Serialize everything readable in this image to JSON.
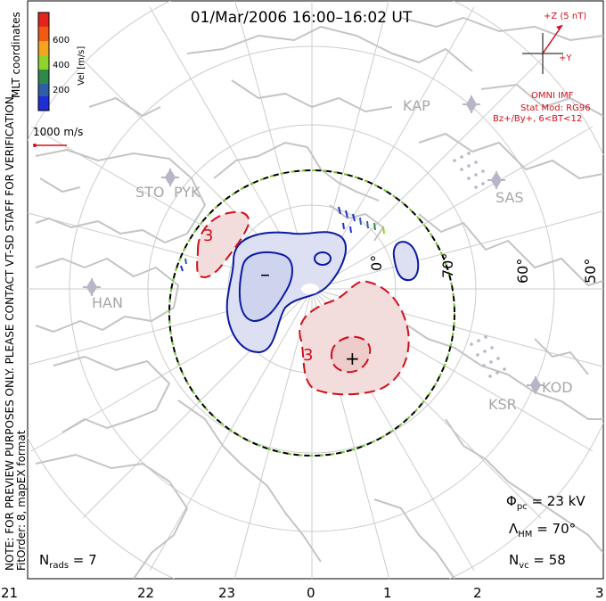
{
  "title": "01/Mar/2006 16:00–16:02 UT",
  "side_note": {
    "line1": "NOTE: FOR PREVIEW PURPOSES ONLY. PLEASE CONTACT VT-SD STAFF FOR VERIFICATION.",
    "line2": "FitOrder: 8, mapEX format"
  },
  "mlt_coordinates": "MLT coordinates",
  "color_scale": {
    "label": "Vel [m/s]",
    "ticks": [
      "600",
      "400",
      "200"
    ],
    "colors": [
      "#e3241b",
      "#f25a12",
      "#f5a420",
      "#8fd42a",
      "#2f8a4a",
      "#2e5ea8",
      "#1f2ed6"
    ]
  },
  "vector_scale": "1000 m/s",
  "imf": {
    "z_label": "+Z (5 nT)",
    "y_label": "+Y",
    "source": "OMNI IMF",
    "model": "Stat Mod: RG96",
    "condition": "Bz+/By+, 6<BT<12"
  },
  "stations": [
    "KAP",
    "SAS",
    "STO",
    "PYK",
    "HAN",
    "KSR",
    "KOD"
  ],
  "latitude_labels": [
    "70°",
    "60°",
    "50°"
  ],
  "contour_labels": {
    "neg": "–",
    "neg3": "3",
    "pos3": "3",
    "plus": "+"
  },
  "stats": {
    "phi_pc": "Φpc = 23 kV",
    "lambda_hm": "ΛHM = 70°",
    "n_vc": "Nvc = 58",
    "n_rads": "Nrads = 7"
  },
  "stats_parts": {
    "phi_sym": "Φ",
    "phi_sub": "pc",
    "phi_val": " = 23 kV",
    "lam_sym": "Λ",
    "lam_sub": "HM",
    "lam_val": " = 70°",
    "nvc_sym": "N",
    "nvc_sub": "vc",
    "nvc_val": " = 58",
    "nr_sym": "N",
    "nr_sub": "rads",
    "nr_val": " = 7"
  },
  "mlt_ticks": [
    "21",
    "22",
    "23",
    "0",
    "1",
    "2",
    "3"
  ],
  "colors": {
    "positive_contour": "#d0101a",
    "negative_contour": "#0b1aa3",
    "positive_fill": "#f2dcdc",
    "negative_fill": "#dde0f2",
    "boundary_green": "#78c832",
    "coast": "#c4c4c4",
    "grid": "#cccccc"
  }
}
